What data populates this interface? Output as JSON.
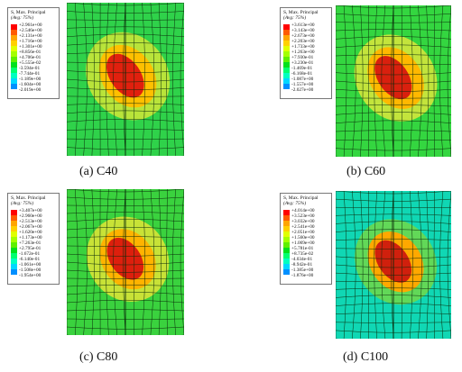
{
  "colorbar": [
    "#ff0000",
    "#ff5a00",
    "#ffa500",
    "#ffd000",
    "#e0ff00",
    "#a4ff00",
    "#5ff000",
    "#00e11c",
    "#00ff6f",
    "#00ffc0",
    "#00d8ff",
    "#0090ff",
    "#0040ff",
    "#0000ff"
  ],
  "panels": [
    {
      "caption": "(a) C40",
      "legend_title": "S, Max. Principal",
      "legend_subtitle": "(Avg: 75%)",
      "legend_values": [
        "+2.961e+00",
        "+2.546e+00",
        "+2.131e+00",
        "+1.716e+00",
        "+1.301e+00",
        "+8.856e-01",
        "+4.706e-01",
        "+5.555e-02",
        "-3.594e-01",
        "-7.744e-01",
        "-1.189e+00",
        "-1.604e+00",
        "-2.019e+00"
      ],
      "colors": {
        "background": "#2fd24a",
        "halo": "#b9e43a",
        "mid": "#ffc000",
        "core": "#e1200e"
      }
    },
    {
      "caption": "(b) C60",
      "legend_title": "S, Max. Principal",
      "legend_subtitle": "(Avg: 75%)",
      "legend_values": [
        "+3.613e+00",
        "+3.143e+00",
        "+2.673e+00",
        "+2.203e+00",
        "+1.733e+00",
        "+1.263e+00",
        "+7.930e-01",
        "+3.230e-01",
        "-1.469e-01",
        "-6.168e-01",
        "-1.087e+00",
        "-1.557e+00",
        "-2.027e+00"
      ],
      "colors": {
        "background": "#34d640",
        "halo": "#c3e43c",
        "mid": "#ffb800",
        "core": "#d9200e"
      }
    },
    {
      "caption": "(c) C80",
      "legend_title": "S, Max. Principal",
      "legend_subtitle": "(Avg: 75%)",
      "legend_values": [
        "+3.407e+00",
        "+2.960e+00",
        "+2.513e+00",
        "+2.067e+00",
        "+1.620e+00",
        "+1.173e+00",
        "+7.263e-01",
        "+2.795e-01",
        "-1.672e-01",
        "-6.140e-01",
        "-1.061e+00",
        "-1.508e+00",
        "-1.954e+00"
      ],
      "colors": {
        "background": "#3ad23e",
        "halo": "#c8e237",
        "mid": "#ffb300",
        "core": "#dd1f0d"
      }
    },
    {
      "caption": "(d) C100",
      "legend_title": "S, Max. Principal",
      "legend_subtitle": "(Avg: 75%)",
      "legend_values": [
        "+4.014e+00",
        "+3.523e+00",
        "+3.032e+00",
        "+2.541e+00",
        "+2.051e+00",
        "+1.560e+00",
        "+1.069e+00",
        "+5.781e-01",
        "+8.735e-02",
        "-4.034e-01",
        "-8.942e-01",
        "-1.385e+00",
        "-1.876e+00"
      ],
      "colors": {
        "background": "#10d7b4",
        "halo": "#62d858",
        "mid": "#ffa800",
        "core": "#d0200d"
      }
    }
  ]
}
